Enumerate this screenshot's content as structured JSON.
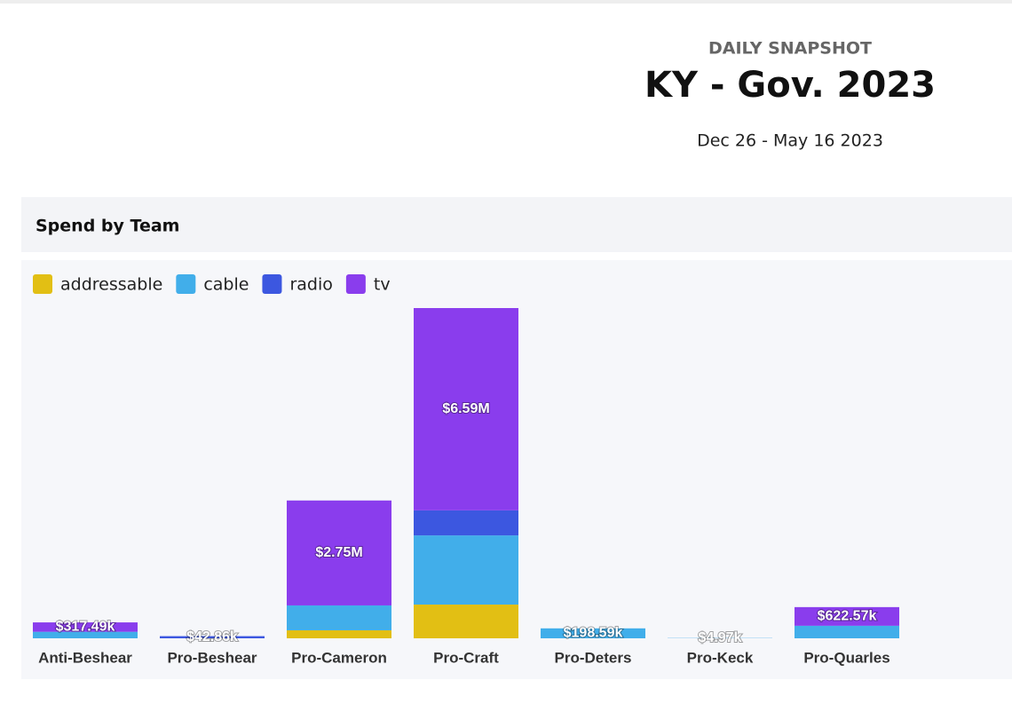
{
  "header": {
    "kicker": "DAILY SNAPSHOT",
    "title": "KY - Gov. 2023",
    "date_range": "Dec 26 - May 16 2023"
  },
  "chart_data": {
    "type": "stacked_bar",
    "title": "Spend by Team",
    "categories": [
      "Anti-Beshear",
      "Pro-Beshear",
      "Pro-Cameron",
      "Pro-Craft",
      "Pro-Deters",
      "Pro-Keck",
      "Pro-Quarles"
    ],
    "series": [
      {
        "name": "addressable",
        "color": "#e2bf14",
        "values": [
          null,
          null,
          160000,
          673000,
          null,
          null,
          null
        ]
      },
      {
        "name": "cable",
        "color": "#41aeea",
        "values": [
          130000,
          null,
          496000,
          1380000,
          198590,
          4970,
          250000
        ]
      },
      {
        "name": "radio",
        "color": "#3c57e0",
        "values": [
          null,
          42860,
          null,
          500000,
          null,
          null,
          null
        ]
      },
      {
        "name": "tv",
        "color": "#8a3ded",
        "values": [
          187490,
          null,
          2094000,
          4037000,
          null,
          null,
          372570
        ]
      }
    ],
    "totals": [
      317490,
      42860,
      2750000,
      6590000,
      198590,
      4970,
      622570
    ],
    "total_labels": [
      "$317.49k",
      "$42.86k",
      "$2.75M",
      "$6.59M",
      "$198.59k",
      "$4.97k",
      "$622.57k"
    ],
    "legend": "top-left"
  }
}
